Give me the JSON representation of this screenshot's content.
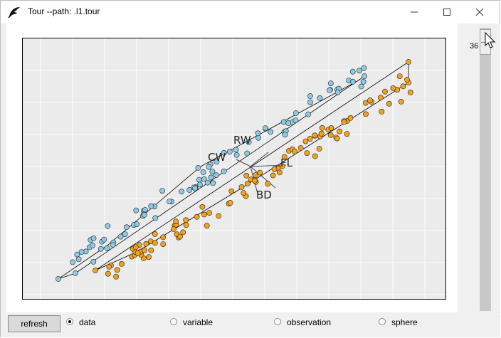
{
  "window": {
    "title": "Tour --path: .l1.tour"
  },
  "plot": {
    "axis_labels": [
      {
        "text": "BD"
      },
      {
        "text": "RW"
      },
      {
        "text": "CW"
      },
      {
        "text": "FL"
      },
      {
        "text": "BD"
      }
    ],
    "colors": {
      "group1": "#8ecae6",
      "group2": "#f4a21c",
      "background": "#ebebeb",
      "grid": "#ffffff"
    }
  },
  "slider": {
    "value": "36"
  },
  "bottom": {
    "refresh_label": "refresh",
    "options": [
      {
        "label": "data",
        "selected": true
      },
      {
        "label": "variable",
        "selected": false
      },
      {
        "label": "observation",
        "selected": false
      },
      {
        "label": "sphere",
        "selected": false
      }
    ]
  }
}
